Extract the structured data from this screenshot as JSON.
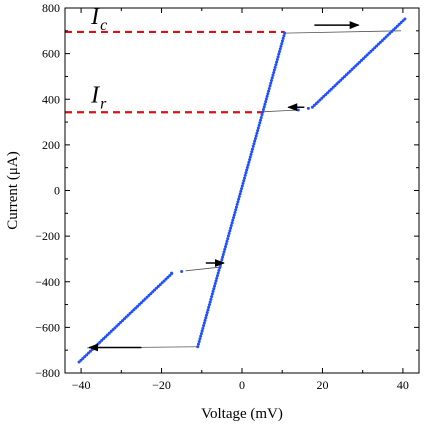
{
  "chart_data": {
    "type": "scatter",
    "title": "",
    "xlabel": "Voltage (mV)",
    "ylabel": "Current (μA)",
    "xlim": [
      -44,
      44
    ],
    "ylim": [
      -800,
      800
    ],
    "grid": false,
    "xticks": [
      -40,
      -20,
      0,
      20,
      40
    ],
    "yticks": [
      -800,
      -600,
      -400,
      -200,
      0,
      200,
      400,
      600,
      800
    ],
    "xtick_labels": [
      "−40",
      "−20",
      "0",
      "20",
      "40"
    ],
    "ytick_labels": [
      "−800",
      "−600",
      "−400",
      "−200",
      "0",
      "200",
      "400",
      "600",
      "800"
    ],
    "series": [
      {
        "role": "data",
        "color": "#1f4fff",
        "marker": "dot",
        "segments": [
          {
            "from": [
              -11,
              -685
            ],
            "to": [
              10.6,
              690
            ],
            "n": 120
          },
          {
            "from": [
              17.5,
              365
            ],
            "to": [
              40.5,
              752
            ],
            "n": 50
          },
          {
            "from": [
              -40.5,
              -752
            ],
            "to": [
              -17.5,
              -365
            ],
            "n": 50
          },
          {
            "from": [
              -17.5,
              -362
            ],
            "to": [
              -15,
              -355
            ],
            "n": 2
          },
          {
            "from": [
              14,
              353
            ],
            "to": [
              16.5,
              360
            ],
            "n": 2
          }
        ]
      },
      {
        "role": "jump-lines",
        "color": "#555555",
        "lines": [
          [
            [
              10.6,
              690
            ],
            [
              39.5,
              700
            ]
          ],
          [
            [
              14,
              353
            ],
            [
              5,
              345
            ]
          ],
          [
            [
              -11,
              -685
            ],
            [
              -38.5,
              -690
            ]
          ],
          [
            [
              -14,
              -352
            ],
            [
              -5,
              -335
            ]
          ]
        ]
      }
    ],
    "annotations": [
      {
        "text": "I",
        "sub": "c",
        "x": -37.5,
        "y": 730,
        "role": "critical-current"
      },
      {
        "text": "I",
        "sub": "r",
        "x": -37.5,
        "y": 385,
        "role": "retrapping-current"
      }
    ],
    "reference_lines": [
      {
        "label": "Ic",
        "y": 695,
        "x_from": -44,
        "x_to": 10.6,
        "color": "#dd1111",
        "style": "dashed"
      },
      {
        "label": "Ir",
        "y": 343,
        "x_from": -44,
        "x_to": 5,
        "color": "#dd1111",
        "style": "dashed"
      }
    ],
    "arrows": [
      {
        "from": [
          18,
          725
        ],
        "to": [
          29,
          725
        ],
        "color": "#000000"
      },
      {
        "from": [
          15.5,
          365
        ],
        "to": [
          11.5,
          365
        ],
        "color": "#000000"
      },
      {
        "from": [
          -25,
          -688
        ],
        "to": [
          -38,
          -688
        ],
        "color": "#000000"
      },
      {
        "from": [
          -9,
          -318
        ],
        "to": [
          -4.5,
          -318
        ],
        "color": "#000000"
      }
    ]
  }
}
